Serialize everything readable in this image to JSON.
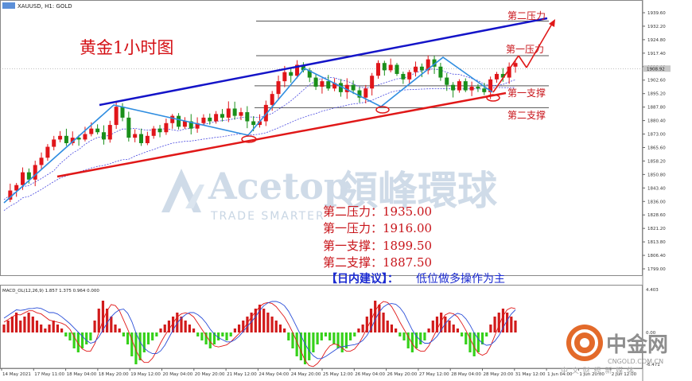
{
  "window": {
    "chart_title": "XAUUSD, H1: GOLD",
    "overlay_title": "黄金1小时图"
  },
  "colors": {
    "up_candle": "#e0151a",
    "down_candle": "#1a8f1a",
    "upper_channel": "#1414c8",
    "lower_channel": "#e01818",
    "zigzag": "#2f8de0",
    "level_text": "#c8141a",
    "macd_pos": "#d11a1a",
    "macd_neg": "#36d11a",
    "macd_line1": "#e01818",
    "macd_line2": "#2a4ed8",
    "ma_color": "#4a4ae0"
  },
  "levels": [
    {
      "name": "第二压力",
      "price": 1935
    },
    {
      "name": "第一压力",
      "price": 1916
    },
    {
      "name": "第一支撑",
      "price": 1899.5
    },
    {
      "name": "第二支撑",
      "price": 1887.5
    }
  ],
  "summary": {
    "lines": [
      "第二压力：1935.00",
      "第一压力：1916.00",
      "第一支撑：1899.50",
      "第二支撑：1887.50"
    ],
    "advice_label": "【日内建议】：",
    "advice_text": "低位做多操作为主"
  },
  "watermark": {
    "brand": "Acetop",
    "brand_cn": "領峰環球",
    "tagline": "TRADE SMARTER"
  },
  "logo": {
    "name": "中金网",
    "url": "CNGOLD.COM.CN",
    "slogan": "中 文 财 经 新 媒 体"
  },
  "chart_data": {
    "type": "candlestick",
    "title": "XAUUSD, H1: GOLD",
    "ylim": [
      1795,
      1942
    ],
    "price_ticks": [
      "1939.60",
      "1932.20",
      "1924.80",
      "1917.40",
      "1910.00",
      "1902.60",
      "1895.20",
      "1887.80",
      "1880.40",
      "1873.00",
      "1865.60",
      "1858.20",
      "1850.80",
      "1843.40",
      "1836.00",
      "1828.60",
      "1821.20",
      "1813.80",
      "1806.40",
      "1799.00"
    ],
    "current_price": "1908.92",
    "x_labels": [
      "14 May 2021",
      "17 May 11:00",
      "18 May 04:00",
      "18 May 20:00",
      "19 May 12:00",
      "20 May 04:00",
      "20 May 20:00",
      "21 May 12:00",
      "24 May 04:00",
      "24 May 20:00",
      "25 May 12:00",
      "26 May 04:00",
      "26 May 20:00",
      "27 May 12:00",
      "28 May 04:00",
      "28 May 20:00",
      "31 May 12:00",
      "1 Jun 04:00",
      "1 Jun 20:00",
      "2 Jun 12:00"
    ],
    "close_path": [
      1837,
      1842,
      1845,
      1852,
      1848,
      1856,
      1860,
      1866,
      1870,
      1872,
      1868,
      1871,
      1870,
      1873,
      1876,
      1874,
      1870,
      1878,
      1888,
      1882,
      1871,
      1873,
      1868,
      1872,
      1876,
      1874,
      1879,
      1883,
      1877,
      1880,
      1876,
      1879,
      1882,
      1880,
      1884,
      1882,
      1887,
      1883,
      1885,
      1880,
      1878,
      1880,
      1889,
      1895,
      1902,
      1907,
      1905,
      1911,
      1908,
      1904,
      1899,
      1902,
      1898,
      1901,
      1896,
      1900,
      1897,
      1893,
      1898,
      1905,
      1912,
      1908,
      1911,
      1906,
      1903,
      1907,
      1910,
      1908,
      1914,
      1910,
      1904,
      1900,
      1897,
      1902,
      1897,
      1899,
      1898,
      1896,
      1903,
      1906,
      1904,
      1910,
      1912
    ],
    "levels": [
      1935,
      1916,
      1899.5,
      1887.5
    ],
    "macd": {
      "label": "MACD_OL(12,26,9) 1.857 1.375 0.964 0.000",
      "right_top": "4.403",
      "right_zero": "0.00",
      "right_bottom": "-6.471",
      "hist": [
        2,
        3,
        4,
        5,
        3,
        4,
        5,
        4,
        3,
        2,
        1,
        2,
        3,
        2,
        1,
        -1,
        -2,
        -4,
        -5,
        -4,
        -3,
        -2,
        3,
        6,
        8,
        6,
        4,
        2,
        1,
        -1,
        -3,
        -6,
        -8,
        -7,
        -5,
        -3,
        -2,
        -1,
        1,
        2,
        3,
        4,
        5,
        4,
        3,
        2,
        1,
        -1,
        -2,
        -3,
        -4,
        -3,
        -2,
        -1,
        -2,
        -1,
        1,
        2,
        3,
        4,
        5,
        6,
        7,
        6,
        5,
        4,
        3,
        2,
        1,
        -2,
        -4,
        -6,
        -7,
        -8,
        -7,
        -5,
        -3,
        -2,
        -1,
        -2,
        -3,
        -4,
        -5,
        -4,
        -2,
        -1,
        1,
        2,
        4,
        6,
        8,
        7,
        5,
        3,
        2,
        1,
        -1,
        -2,
        -4,
        -5,
        -4,
        -3,
        -2,
        1,
        3,
        4,
        5,
        4,
        3,
        2,
        1,
        -1,
        -3,
        -5,
        -6,
        -5,
        -3,
        -1,
        2,
        4,
        5,
        6,
        5,
        4,
        3
      ]
    }
  }
}
